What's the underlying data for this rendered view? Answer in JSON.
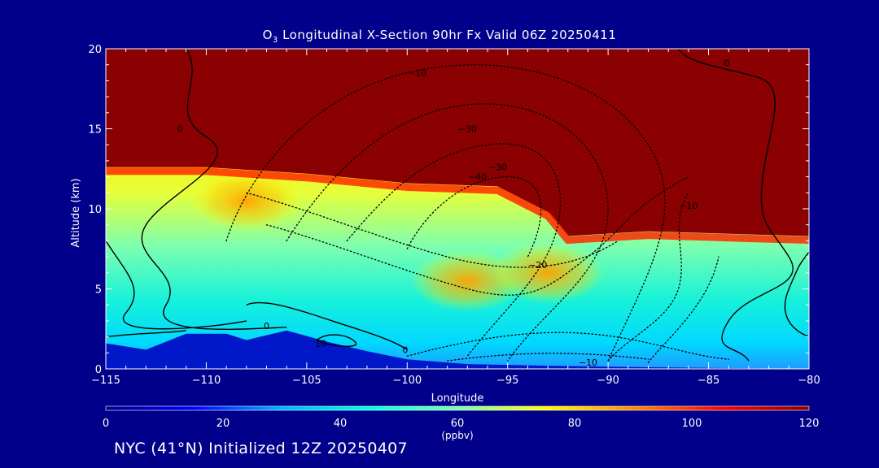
{
  "title": {
    "species": "O",
    "subscript": "3",
    "rest": " Longitudinal X-Section 90hr  Fx Valid 06Z 20250411"
  },
  "footer": "NYC (41°N) Initialized 12Z 20250407",
  "chart_data": {
    "type": "contour",
    "title": "O3 Longitudinal X-Section 90hr  Fx Valid 06Z 20250411",
    "xlabel": "Longitude",
    "ylabel": "Altitude (km)",
    "xlim": [
      -115,
      -80
    ],
    "ylim": [
      0,
      20
    ],
    "xticks": [
      -115,
      -110,
      -105,
      -100,
      -95,
      -90,
      -85,
      -80
    ],
    "xtick_labels": [
      "−115",
      "−110",
      "−105",
      "−100",
      "−95",
      "−90",
      "−85",
      "−80"
    ],
    "yticks": [
      0,
      5,
      10,
      15,
      20
    ],
    "ytick_labels": [
      "0",
      "5",
      "10",
      "15",
      "20"
    ],
    "fill_variable": "O3",
    "colorbar": {
      "min": 0,
      "max": 120,
      "ticks": [
        0,
        20,
        40,
        60,
        80,
        100,
        120
      ],
      "tick_labels": [
        "0",
        "20",
        "40",
        "60",
        "80",
        "100",
        "120"
      ],
      "unit": "(ppbv)",
      "colors": [
        "#00008b",
        "#0000ff",
        "#00b4ff",
        "#00ffe0",
        "#7cffb0",
        "#ffff00",
        "#ff8c00",
        "#ff0000",
        "#8b0000"
      ]
    },
    "tropopause_km": [
      {
        "lon": -115,
        "alt": 12.6
      },
      {
        "lon": -110,
        "alt": 12.6
      },
      {
        "lon": -105,
        "alt": 12.2
      },
      {
        "lon": -100,
        "alt": 11.6
      },
      {
        "lon": -95.5,
        "alt": 11.4
      },
      {
        "lon": -93,
        "alt": 9.8
      },
      {
        "lon": -92,
        "alt": 8.3
      },
      {
        "lon": -88,
        "alt": 8.6
      },
      {
        "lon": -83,
        "alt": 8.4
      },
      {
        "lon": -80,
        "alt": 8.3
      }
    ],
    "terrain_km": [
      {
        "lon": -115,
        "alt": 1.6
      },
      {
        "lon": -113,
        "alt": 1.2
      },
      {
        "lon": -111,
        "alt": 2.2
      },
      {
        "lon": -109,
        "alt": 2.2
      },
      {
        "lon": -108,
        "alt": 1.8
      },
      {
        "lon": -106,
        "alt": 2.4
      },
      {
        "lon": -104,
        "alt": 1.7
      },
      {
        "lon": -102,
        "alt": 1.1
      },
      {
        "lon": -100,
        "alt": 0.6
      },
      {
        "lon": -97,
        "alt": 0.3
      },
      {
        "lon": -93,
        "alt": 0.2
      },
      {
        "lon": -88,
        "alt": 0.1
      },
      {
        "lon": -80,
        "alt": 0.0
      }
    ],
    "hot_cores": [
      {
        "lon": -108,
        "alt": 10.5,
        "value": 85
      },
      {
        "lon": -97,
        "alt": 5.5,
        "value": 85
      },
      {
        "lon": -93,
        "alt": 6.0,
        "value": 82
      }
    ],
    "contour_labels": [
      "−10",
      "−30",
      "−40",
      "−30",
      "−20",
      "−10",
      "0",
      "0",
      "0",
      "0",
      "10",
      "−10"
    ]
  }
}
